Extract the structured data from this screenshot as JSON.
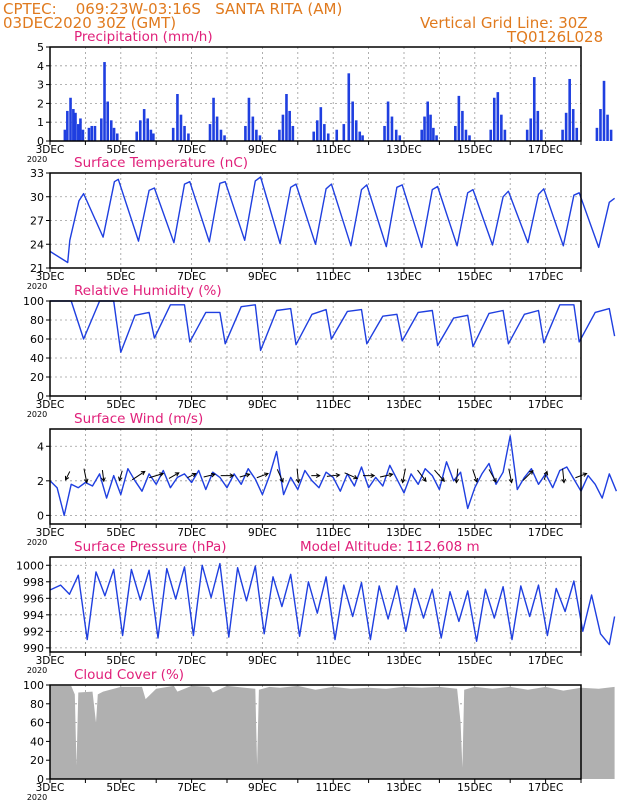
{
  "header": {
    "left_line1": "CPTEC:    069:23W-03:16S   SANTA RITA (AM)",
    "left_line2": "03DEC2020 30Z (GMT)",
    "right_line1": "Vertical Grid Line: 30Z",
    "right_line2": "TQ0126L028"
  },
  "colors": {
    "header": "#e07a1e",
    "title": "#e0207a",
    "line": "#1f3fe0",
    "bars": "#1f3fe0",
    "cloud": "#b0b0b0",
    "frame": "#000000",
    "grid": "#9a9a9a"
  },
  "x_tick_labels": [
    "3DEC",
    "5DEC",
    "7DEC",
    "9DEC",
    "11DEC",
    "13DEC",
    "15DEC",
    "17DEC"
  ],
  "x_axis_sublabel": "2020",
  "chart_data": [
    {
      "type": "bar",
      "title": "Precipitation (mm/h)",
      "ylim": [
        0,
        5
      ],
      "yticks": [
        0,
        1,
        2,
        3,
        4,
        5
      ],
      "x_days": [
        0.42,
        0.49,
        0.58,
        0.66,
        0.72,
        0.8,
        0.86,
        0.93,
        1.1,
        1.18,
        1.27,
        1.45,
        1.54,
        1.63,
        1.73,
        1.81,
        1.9,
        2.45,
        2.55,
        2.66,
        2.76,
        2.85,
        2.92,
        3.48,
        3.6,
        3.7,
        3.8,
        3.91,
        4.52,
        4.62,
        4.72,
        4.83,
        4.93,
        5.52,
        5.62,
        5.73,
        5.83,
        5.93,
        6.48,
        6.58,
        6.68,
        6.77,
        6.86,
        7.45,
        7.55,
        7.65,
        7.75,
        7.86,
        8.1,
        8.3,
        8.44,
        8.55,
        8.65,
        8.75,
        8.83,
        9.45,
        9.55,
        9.66,
        9.78,
        9.88,
        10.5,
        10.58,
        10.67,
        10.75,
        10.83,
        10.92,
        11.45,
        11.55,
        11.65,
        11.75,
        11.85,
        12.45,
        12.55,
        12.65,
        12.75,
        12.85,
        13.48,
        13.58,
        13.68,
        13.78,
        13.88,
        14.48,
        14.58,
        14.68,
        14.78,
        14.88,
        15.45,
        15.55,
        15.65,
        15.75,
        15.85,
        16.45,
        16.55,
        16.65,
        16.75,
        16.85,
        17.45,
        17.55,
        17.65,
        17.75,
        17.85
      ],
      "values": [
        0.6,
        1.6,
        2.3,
        1.7,
        1.5,
        0.9,
        1.2,
        0.6,
        0.7,
        0.8,
        0.8,
        1.2,
        4.2,
        2.1,
        1.1,
        0.7,
        0.4,
        0.5,
        1.1,
        1.7,
        1.2,
        0.6,
        0.4,
        0.7,
        2.5,
        1.4,
        0.8,
        0.4,
        0.9,
        2.3,
        1.3,
        0.6,
        0.3,
        0.8,
        2.3,
        1.3,
        0.6,
        0.3,
        0.6,
        1.4,
        2.5,
        1.6,
        0.8,
        0.5,
        1.1,
        1.8,
        0.9,
        0.4,
        0.6,
        0.9,
        3.6,
        2.1,
        1.1,
        0.5,
        0.3,
        0.8,
        2.1,
        1.3,
        0.6,
        0.3,
        0.6,
        1.3,
        2.1,
        1.4,
        0.7,
        0.3,
        0.8,
        2.4,
        1.6,
        0.6,
        0.3,
        0.6,
        2.3,
        2.6,
        1.4,
        0.6,
        0.6,
        1.2,
        3.4,
        1.6,
        0.6,
        0.6,
        1.5,
        3.3,
        1.7,
        0.7,
        0.7,
        1.7,
        3.2,
        1.4,
        0.6,
        0.6,
        1.4,
        3.7,
        2.3,
        0.8,
        0.4,
        1.5,
        3.5,
        1.2,
        0.5
      ]
    },
    {
      "type": "line",
      "title": "Surface Temperature (nC)",
      "ylim": [
        21,
        33
      ],
      "yticks": [
        21,
        24,
        27,
        30,
        33
      ],
      "x_days": [
        0,
        0.5,
        0.56,
        0.82,
        0.95,
        1.5,
        1.82,
        1.93,
        2.5,
        2.8,
        2.95,
        3.5,
        3.8,
        3.95,
        4.5,
        4.8,
        4.95,
        5.5,
        5.8,
        5.95,
        6.5,
        6.8,
        6.95,
        7.5,
        7.8,
        7.95,
        8.5,
        8.8,
        8.95,
        9.5,
        9.8,
        9.95,
        10.5,
        10.8,
        10.95,
        11.5,
        11.8,
        11.95,
        12.5,
        12.8,
        12.95,
        13.5,
        13.8,
        13.95,
        14.5,
        14.8,
        14.95,
        15.5,
        15.8,
        15.95
      ],
      "values": [
        23.1,
        21.7,
        24.5,
        29.5,
        30.4,
        24.9,
        31.9,
        32.2,
        24.4,
        30.8,
        31.1,
        24.2,
        31.6,
        31.9,
        24.3,
        31.7,
        31.9,
        24.5,
        32,
        32.5,
        24.1,
        31.2,
        31.6,
        24,
        31,
        31.6,
        23.8,
        30.9,
        31.5,
        23.7,
        31.2,
        31.5,
        23.6,
        30.9,
        31.3,
        23.8,
        30.5,
        30.9,
        23.9,
        30,
        30.7,
        24.2,
        30.3,
        31,
        23.8,
        30.2,
        30.5,
        23.6,
        29.3,
        29.8
      ]
    },
    {
      "type": "line",
      "title": "Relative Humidity (%)",
      "ylim": [
        0,
        100
      ],
      "yticks": [
        0,
        20,
        40,
        60,
        80,
        100
      ],
      "x_days": [
        0,
        0.6,
        0.95,
        1.4,
        1.8,
        2.0,
        2.4,
        2.8,
        2.95,
        3.4,
        3.8,
        3.95,
        4.4,
        4.8,
        4.95,
        5.4,
        5.8,
        5.95,
        6.4,
        6.8,
        6.95,
        7.4,
        7.8,
        7.95,
        8.4,
        8.8,
        8.95,
        9.4,
        9.8,
        9.95,
        10.4,
        10.8,
        10.95,
        11.4,
        11.8,
        11.95,
        12.4,
        12.8,
        12.95,
        13.4,
        13.8,
        13.95,
        14.4,
        14.8,
        14.95,
        15.4,
        15.8,
        15.95
      ],
      "values": [
        100,
        100,
        60,
        100,
        100,
        46,
        85,
        88,
        61,
        96,
        96,
        57,
        88,
        88,
        55,
        94,
        96,
        48,
        90,
        92,
        54,
        86,
        91,
        60,
        89,
        91,
        55,
        84,
        86,
        58,
        88,
        90,
        53,
        82,
        85,
        52,
        87,
        90,
        55,
        86,
        90,
        56,
        96,
        96,
        57,
        88,
        92,
        63
      ]
    },
    {
      "type": "line",
      "title": "Surface Wind (m/s)",
      "ylim": [
        -0.5,
        5
      ],
      "yticks": [
        0,
        2,
        4
      ],
      "x_days": [
        0,
        0.2,
        0.4,
        0.6,
        0.8,
        1.0,
        1.2,
        1.4,
        1.6,
        1.8,
        2.0,
        2.2,
        2.4,
        2.6,
        2.8,
        3.0,
        3.2,
        3.4,
        3.6,
        3.8,
        4.0,
        4.2,
        4.4,
        4.6,
        4.8,
        5.0,
        5.2,
        5.4,
        5.6,
        5.8,
        6.0,
        6.2,
        6.4,
        6.6,
        6.8,
        7.0,
        7.2,
        7.4,
        7.6,
        7.8,
        8.0,
        8.2,
        8.4,
        8.6,
        8.8,
        9.0,
        9.2,
        9.4,
        9.6,
        9.8,
        10.0,
        10.2,
        10.4,
        10.6,
        10.8,
        11.0,
        11.2,
        11.4,
        11.6,
        11.8,
        12.0,
        12.2,
        12.4,
        12.6,
        12.8,
        13.0,
        13.2,
        13.4,
        13.6,
        13.8,
        14.0,
        14.2,
        14.4,
        14.6,
        14.8,
        15.0,
        15.2,
        15.4,
        15.6,
        15.8,
        16.0
      ],
      "values": [
        2.0,
        1.6,
        0.0,
        1.8,
        1.6,
        1.9,
        1.7,
        2.4,
        1.0,
        2.3,
        1.2,
        2.7,
        2.0,
        1.4,
        2.4,
        1.8,
        2.6,
        1.6,
        2.2,
        2.4,
        1.9,
        2.6,
        1.5,
        2.5,
        2.2,
        1.6,
        2.4,
        1.8,
        2.7,
        2.1,
        1.2,
        2.3,
        3.7,
        1.2,
        2.2,
        1.5,
        2.6,
        2.0,
        1.6,
        2.5,
        2.2,
        1.4,
        2.4,
        1.7,
        2.8,
        1.6,
        2.2,
        1.7,
        2.9,
        2.1,
        1.3,
        2.4,
        1.8,
        2.7,
        2.3,
        1.5,
        3.1,
        2.0,
        2.5,
        0.4,
        1.6,
        2.4,
        3.0,
        1.8,
        2.5,
        4.6,
        1.5,
        2.2,
        2.7,
        1.8,
        2.4,
        1.6,
        2.6,
        2.8,
        2.1,
        1.4,
        2.3,
        1.8,
        1.0,
        2.4,
        1.4
      ],
      "vectors": {
        "x_days": [
          0.5,
          1.0,
          1.5,
          2.0,
          2.5,
          3.0,
          3.5,
          4.0,
          4.5,
          5.0,
          5.5,
          6.0,
          6.5,
          7.0,
          7.5,
          8.0,
          8.5,
          9.0,
          9.5,
          10.0,
          10.5,
          11.0,
          11.5,
          12.0,
          12.5,
          13.0,
          13.5,
          14.0,
          14.5,
          15.0
        ],
        "u": [
          -0.3,
          0.2,
          0.1,
          -0.2,
          0.9,
          1.0,
          0.7,
          0.6,
          0.8,
          0.9,
          0.7,
          0.8,
          0.4,
          0.1,
          0.6,
          0.9,
          0.9,
          0.8,
          0.9,
          -0.2,
          0.6,
          0.7,
          -0.1,
          0.3,
          0.5,
          0.2,
          0.7,
          0.2,
          0.1,
          0.8
        ],
        "v": [
          -0.6,
          -1.0,
          -0.8,
          -0.7,
          0.6,
          0.3,
          0.4,
          0.3,
          0.2,
          0.0,
          0.2,
          0.3,
          -0.9,
          -1.0,
          0.0,
          0.1,
          -0.4,
          0.0,
          0.2,
          -1.0,
          -0.8,
          -0.8,
          -1.0,
          -0.9,
          -0.9,
          -1.0,
          0.7,
          0.6,
          -1.0,
          0.3
        ]
      }
    },
    {
      "type": "line",
      "title": "Surface Pressure (hPa)",
      "subtitle": "Model Altitude: 112.608 m",
      "ylim": [
        989.5,
        1001
      ],
      "yticks": [
        990,
        992,
        994,
        996,
        998,
        1000
      ],
      "x_days": [
        0,
        0.3,
        0.55,
        0.8,
        1.05,
        1.3,
        1.55,
        1.8,
        2.05,
        2.3,
        2.55,
        2.8,
        3.05,
        3.3,
        3.55,
        3.8,
        4.05,
        4.3,
        4.55,
        4.8,
        5.05,
        5.3,
        5.55,
        5.8,
        6.05,
        6.3,
        6.55,
        6.8,
        7.05,
        7.3,
        7.55,
        7.8,
        8.05,
        8.3,
        8.55,
        8.8,
        9.05,
        9.3,
        9.55,
        9.8,
        10.05,
        10.3,
        10.55,
        10.8,
        11.05,
        11.3,
        11.55,
        11.8,
        12.05,
        12.3,
        12.55,
        12.8,
        13.05,
        13.3,
        13.55,
        13.8,
        14.05,
        14.3,
        14.55,
        14.8,
        15.05,
        15.3,
        15.55,
        15.8,
        15.95
      ],
      "values": [
        997,
        997.6,
        996.5,
        998.8,
        991,
        999.2,
        996.3,
        999.5,
        991.5,
        999.5,
        995.8,
        999.4,
        991.2,
        999.6,
        995.9,
        999.8,
        991.5,
        1000,
        996.1,
        1000.2,
        991.3,
        999.7,
        995.7,
        999.9,
        991.7,
        998.6,
        995,
        998.9,
        991.4,
        998,
        994.2,
        998.6,
        991,
        997.6,
        993.8,
        997.9,
        991,
        997.5,
        993.5,
        997.5,
        992,
        997.2,
        993.6,
        997.1,
        991.2,
        996.8,
        993.2,
        996.9,
        990.8,
        997.1,
        993.6,
        997.4,
        991,
        997.5,
        993.8,
        997.6,
        991.5,
        997.2,
        994.4,
        998.1,
        992,
        996.4,
        991.7,
        990.4,
        993.8
      ]
    },
    {
      "type": "area",
      "title": "Cloud Cover (%)",
      "ylim": [
        0,
        100
      ],
      "yticks": [
        0,
        20,
        40,
        60,
        80,
        100
      ],
      "x_days": [
        0,
        0.6,
        0.7,
        0.75,
        0.8,
        1.2,
        1.3,
        1.35,
        1.5,
        2.0,
        2.6,
        2.7,
        3.0,
        3.5,
        3.6,
        4.0,
        4.5,
        4.6,
        5.0,
        5.5,
        5.8,
        5.85,
        5.9,
        6.2,
        6.5,
        7.0,
        7.5,
        8.0,
        8.5,
        9.0,
        9.5,
        10.0,
        10.5,
        11.0,
        11.5,
        11.6,
        11.65,
        11.7,
        12.0,
        12.5,
        13.0,
        13.5,
        14.0,
        14.5,
        15.0,
        15.5,
        15.95
      ],
      "values": [
        99,
        99,
        90,
        14,
        92,
        93,
        60,
        90,
        93,
        98,
        98,
        85,
        96,
        99,
        93,
        99,
        98,
        92,
        99,
        97,
        96,
        15,
        95,
        98,
        97,
        99,
        95,
        98,
        96,
        97,
        96,
        98,
        97,
        98,
        96,
        60,
        12,
        95,
        98,
        96,
        98,
        95,
        98,
        94,
        97,
        96,
        98
      ]
    }
  ]
}
